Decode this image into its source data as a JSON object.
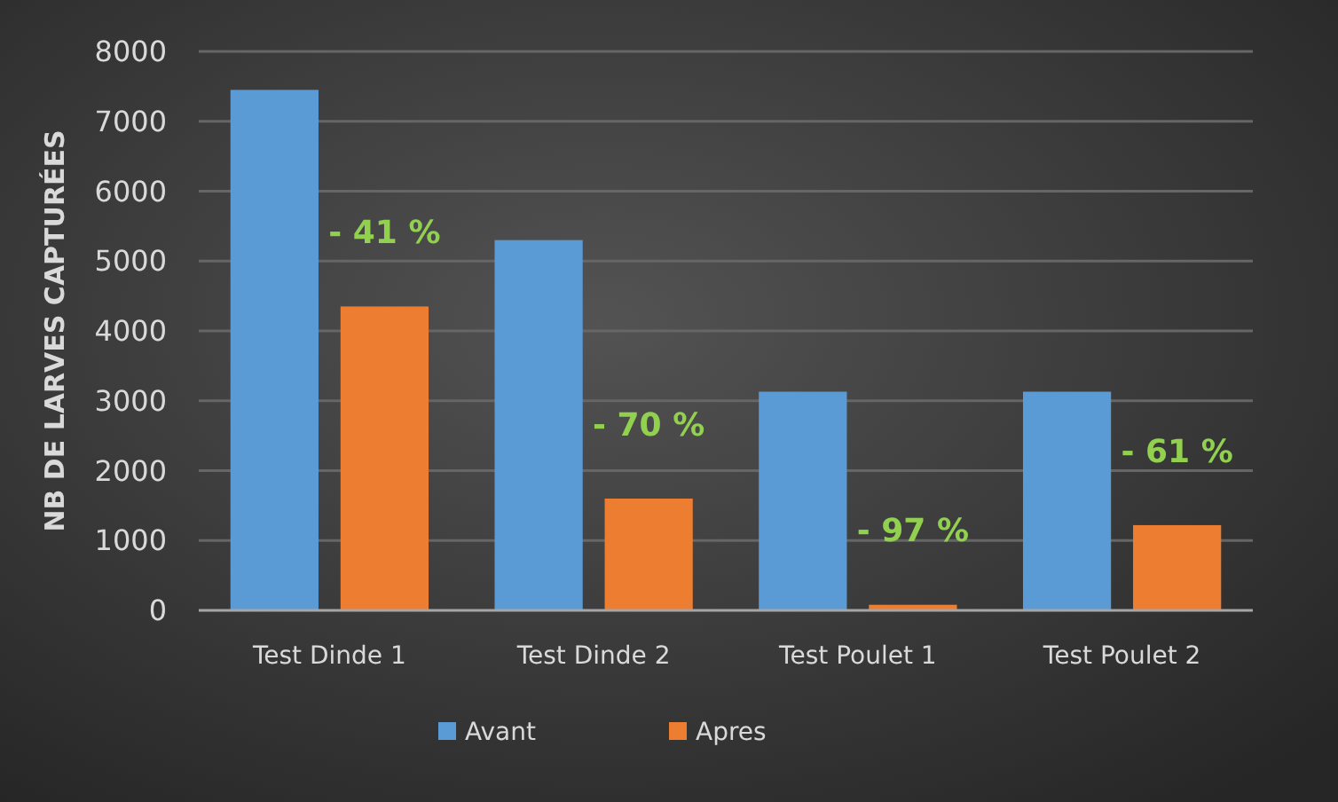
{
  "chart_data": {
    "type": "bar",
    "ylabel": "NB DE LARVES CAPTURÉES",
    "categories": [
      "Test Dinde 1",
      "Test Dinde 2",
      "Test Poulet 1",
      "Test Poulet 2"
    ],
    "series": [
      {
        "name": "Avant",
        "color": "#5b9bd5",
        "values": [
          7450,
          5300,
          3130,
          3130
        ]
      },
      {
        "name": "Apres",
        "color": "#ed7d31",
        "values": [
          4350,
          1600,
          80,
          1220
        ]
      }
    ],
    "ylim": [
      0,
      8000
    ],
    "yticks": [
      0,
      1000,
      2000,
      3000,
      4000,
      5000,
      6000,
      7000,
      8000
    ],
    "grid": "y",
    "legend": "bottom",
    "annotations": [
      "- 41 %",
      "- 70 %",
      "- 97 %",
      "- 61 %"
    ]
  }
}
